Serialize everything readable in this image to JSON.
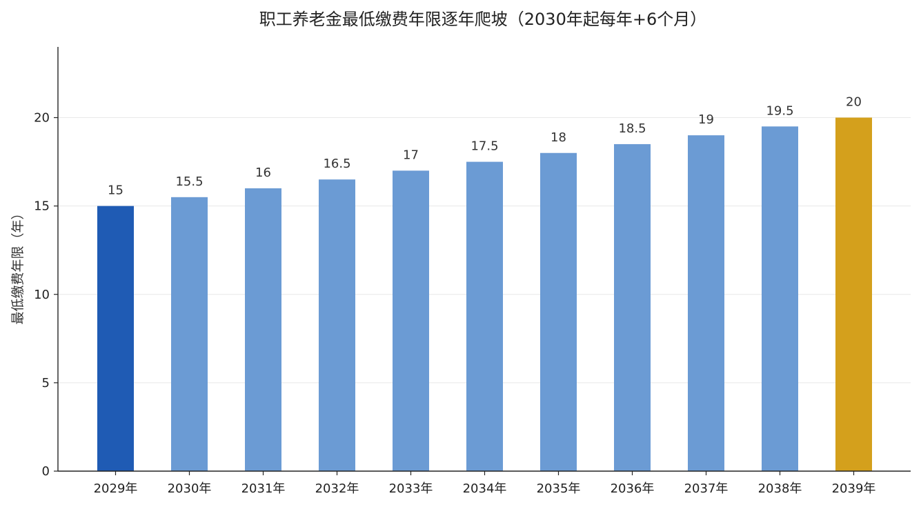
{
  "chart_data": {
    "type": "bar",
    "title": "职工养老金最低缴费年限逐年爬坡（2030年起每年+6个月）",
    "xlabel": "",
    "ylabel": "最低缴费年限（年）",
    "categories": [
      "2029年",
      "2030年",
      "2031年",
      "2032年",
      "2033年",
      "2034年",
      "2035年",
      "2036年",
      "2037年",
      "2038年",
      "2039年"
    ],
    "values": [
      15,
      15.5,
      16,
      16.5,
      17,
      17.5,
      18,
      18.5,
      19,
      19.5,
      20
    ],
    "data_labels": [
      "15",
      "15.5",
      "16",
      "16.5",
      "17",
      "17.5",
      "18",
      "18.5",
      "19",
      "19.5",
      "20"
    ],
    "yticks": [
      0,
      5,
      10,
      15,
      20
    ],
    "ylim": [
      0,
      24
    ],
    "grid": true,
    "legend": "none",
    "colors": {
      "first": "#1f5bb4",
      "middle": "#6b9bd4",
      "last": "#d4a01c"
    }
  }
}
